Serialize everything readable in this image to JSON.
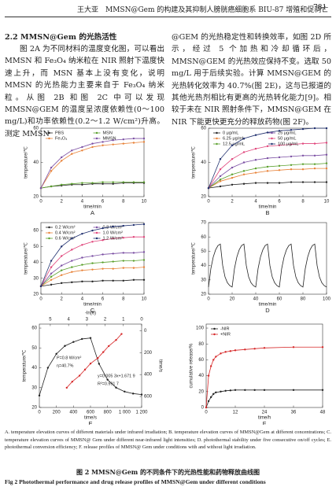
{
  "header": {
    "author": "王大亚",
    "title": "MMSN@Gem 的构建及其抑制人膀胱癌细胞系 BIU-87 增殖和促凋亡",
    "page": "781"
  },
  "body": {
    "heading": "2.2 MMSN@Gem 的光热活性",
    "left": "图 2A 为不同材料的温度变化图，可以看出 MMSN 和 Fe₃O₄ 纳米粒在 NIR 照射下温度快速上升，而 MSN 基本上没有变化，说明 MMSN 的光热能力主要来自于 Fe₃O₄ 纳米粒。从图 2B 和图 2C 中可以发现 MMSN@GEM 的温度呈浓度依赖性(0～100 mg/L)和功率依赖性(0.2～1.2 W/cm²)升高。测定 MMSN",
    "right": "@GEM 的光热稳定性和转换效率，如图 2D 所示，经过 5 个加热和冷却循环后，MMSN@GEM 的光热效应保持不变。选取 50 mg/L 用于后续实验。计算 MMSN@GEM 的光热转化效率为 40.7%(图 2E)，这与已报道的其他光热剂相比有更高的光热转化能力[9]。相较于未在 NIR 照射条件下，MMSN@GEM 在 NIR 下能更快更充分的释放药物(图 2F)。"
  },
  "chart_data": [
    {
      "type": "line",
      "panel_label": "A",
      "xlabel": "time/min",
      "ylabel": "temperature/℃",
      "xlim": [
        0,
        10
      ],
      "ylim": [
        20,
        60
      ],
      "xticks": [
        0,
        2,
        4,
        6,
        8,
        10
      ],
      "yticks": [
        20,
        40,
        60
      ],
      "legend": "upper left",
      "legend_columns": 2,
      "markers": true,
      "x": [
        0,
        1,
        2,
        3,
        4,
        5,
        6,
        7,
        8,
        9,
        10
      ],
      "series": [
        {
          "name": "PBS",
          "color": "#222222",
          "values": [
            25,
            26,
            26.5,
            27,
            27,
            27.5,
            27.5,
            27.5,
            28,
            28,
            28
          ]
        },
        {
          "name": "Fe₃O₄",
          "color": "#e8833a",
          "values": [
            25,
            35,
            41,
            45,
            47,
            49,
            50,
            50.5,
            51,
            51.5,
            52
          ]
        },
        {
          "name": "MSN",
          "color": "#5aa02c",
          "values": [
            25,
            26,
            27,
            27.5,
            28,
            28,
            28.5,
            28.5,
            28.5,
            28.5,
            28.5
          ]
        },
        {
          "name": "MMSN",
          "color": "#7b4fa3",
          "values": [
            25,
            37,
            43,
            47,
            49,
            51,
            52,
            53,
            53.5,
            54,
            54
          ]
        }
      ]
    },
    {
      "type": "line",
      "panel_label": "B",
      "xlabel": "time/min",
      "ylabel": "temperature/℃",
      "xlim": [
        0,
        10
      ],
      "ylim": [
        20,
        60
      ],
      "xticks": [
        0,
        2,
        4,
        6,
        8,
        10
      ],
      "yticks": [
        20,
        40,
        60
      ],
      "legend": "upper left",
      "legend_columns": 2,
      "markers": true,
      "x": [
        0,
        1,
        2,
        3,
        4,
        5,
        6,
        7,
        8,
        9,
        10
      ],
      "series": [
        {
          "name": "0 μg/mL",
          "color": "#222222",
          "values": [
            25,
            26,
            27,
            27.5,
            28,
            28,
            28,
            28.5,
            28.5,
            28.5,
            28.5
          ]
        },
        {
          "name": "6.25 μg/mL",
          "color": "#e8833a",
          "values": [
            25,
            29,
            31,
            33,
            34,
            35,
            35.5,
            36,
            36,
            36.5,
            36.5
          ]
        },
        {
          "name": "12.5 μg/mL",
          "color": "#5aa02c",
          "values": [
            25,
            30,
            33,
            35,
            36.5,
            37.5,
            38,
            38.5,
            39,
            39,
            39.5
          ]
        },
        {
          "name": "25 μg/mL",
          "color": "#7b4fa3",
          "values": [
            25,
            32,
            37,
            40,
            41.5,
            42.5,
            43,
            43.5,
            44,
            44,
            44.5
          ]
        },
        {
          "name": "50 μg/mL",
          "color": "#e0457b",
          "values": [
            25,
            36,
            42,
            46,
            48,
            49.5,
            50,
            50.5,
            51,
            51,
            51.5
          ]
        },
        {
          "name": "100 μg/mL",
          "color": "#1f2f6e",
          "values": [
            25,
            42,
            50,
            54,
            56,
            57.5,
            58.5,
            59,
            59.5,
            60,
            60
          ]
        }
      ]
    },
    {
      "type": "line",
      "panel_label": "C",
      "xlabel": "time/min",
      "ylabel": "temperature/℃",
      "xlim": [
        0,
        10
      ],
      "ylim": [
        20,
        65
      ],
      "xticks": [
        0,
        2,
        4,
        6,
        8,
        10
      ],
      "yticks": [
        20,
        30,
        40,
        50,
        60
      ],
      "legend": "upper left",
      "legend_columns": 2,
      "markers": true,
      "x": [
        0,
        1,
        2,
        3,
        4,
        5,
        6,
        7,
        8,
        9,
        10
      ],
      "series": [
        {
          "name": "0.2 W/cm²",
          "color": "#222222",
          "values": [
            25,
            26,
            27,
            27.5,
            28,
            28,
            28.5,
            28.5,
            28.5,
            29,
            29
          ]
        },
        {
          "name": "0.4 W/cm²",
          "color": "#e8833a",
          "values": [
            25,
            29,
            32,
            34,
            35,
            35.5,
            36,
            36,
            36.5,
            36.5,
            37
          ]
        },
        {
          "name": "0.6 W/cm²",
          "color": "#5aa02c",
          "values": [
            25,
            31,
            35,
            37,
            38.5,
            39.5,
            40,
            40.5,
            41,
            41,
            41.5
          ]
        },
        {
          "name": "0.8 W/cm²",
          "color": "#7b4fa3",
          "values": [
            25,
            33,
            38,
            41,
            43,
            44,
            45,
            45.5,
            46,
            46,
            46.5
          ]
        },
        {
          "name": "1.0 W/cm²",
          "color": "#e0457b",
          "values": [
            25,
            37,
            44,
            48,
            51,
            53,
            54,
            55,
            55.5,
            56,
            56
          ]
        },
        {
          "name": "1.2 W/cm²",
          "color": "#1f2f6e",
          "values": [
            25,
            41,
            50,
            55,
            58,
            60,
            61.5,
            62.5,
            63,
            63.5,
            64
          ]
        }
      ]
    },
    {
      "type": "line",
      "panel_label": "D",
      "xlabel": "time/min",
      "ylabel": "temperature/℃",
      "xlim": [
        0,
        100
      ],
      "ylim": [
        20,
        70
      ],
      "xticks": [
        0,
        20,
        40,
        60,
        80,
        100
      ],
      "yticks": [
        20,
        30,
        40,
        50,
        60,
        70
      ],
      "markers": false,
      "x": [
        0,
        2,
        4,
        6,
        8,
        10,
        12,
        14,
        16,
        18,
        20,
        22,
        24,
        26,
        28,
        30,
        32,
        34,
        36,
        38,
        40,
        42,
        44,
        46,
        48,
        50,
        52,
        54,
        56,
        58,
        60,
        62,
        64,
        66,
        68,
        70,
        72,
        74,
        76,
        78,
        80,
        82,
        84,
        86,
        88,
        90,
        92,
        94,
        96,
        98,
        100
      ],
      "series": [
        {
          "color": "#222222",
          "values": [
            25,
            38,
            46,
            51,
            54,
            55,
            40,
            32,
            28,
            26,
            25,
            38,
            46,
            51,
            54,
            55,
            40,
            32,
            28,
            26,
            25,
            38,
            46,
            51,
            54,
            55,
            40,
            32,
            28,
            26,
            25,
            38,
            46,
            51,
            54,
            55,
            40,
            32,
            28,
            26,
            25,
            38,
            46,
            51,
            54,
            55,
            40,
            32,
            28,
            26,
            25
          ]
        }
      ]
    },
    {
      "type": "line",
      "panel_label": "E",
      "xlabel": "time/s",
      "ylabel": "temperature/℃",
      "x2label": "-ln(θ)",
      "y2label": "time/s",
      "xlim": [
        0,
        1200
      ],
      "ylim": [
        20,
        62
      ],
      "x2lim": [
        5.6,
        0
      ],
      "y2lim": [
        700,
        -60
      ],
      "xticks": [
        0,
        200,
        400,
        600,
        800,
        {
          "value": 1000,
          "label": "1 000"
        },
        {
          "value": 1200,
          "label": "1 200"
        }
      ],
      "yticks": [
        20,
        30,
        40,
        50,
        60
      ],
      "x2ticks": [
        5,
        4,
        3,
        2,
        1,
        0
      ],
      "y2ticks": [
        0,
        200,
        400,
        600
      ],
      "markers": true,
      "annotations": [
        "P=0.8 W/cm²",
        "η=40.7%",
        "y=0.005 3x+1.671 9",
        "R²=0.991 7"
      ],
      "series": [
        {
          "color": "#222222",
          "x": [
            0,
            100,
            200,
            300,
            400,
            500,
            600,
            700,
            800,
            900,
            1000,
            1100,
            1200
          ],
          "values": [
            26,
            40,
            47,
            51,
            53,
            54.5,
            55,
            42,
            34,
            30,
            28,
            27,
            26.5
          ]
        },
        {
          "color": "#d62728",
          "axis": "y2",
          "xaxis": "x2",
          "x": [
            4.1,
            3.8,
            3.4,
            3.1,
            2.8,
            2.4,
            2.1,
            1.8,
            1.4,
            1.1
          ],
          "values": [
            520,
            465,
            410,
            355,
            300,
            250,
            195,
            140,
            85,
            30
          ]
        }
      ]
    },
    {
      "type": "line",
      "panel_label": "F",
      "xlabel": "time/h",
      "ylabel": "cumulative release/%",
      "xlim": [
        0,
        48
      ],
      "ylim": [
        0,
        105
      ],
      "xticks": [
        0,
        12,
        24,
        36,
        48
      ],
      "yticks": [
        0,
        20,
        40,
        60,
        80,
        100
      ],
      "legend": "upper left",
      "legend_columns": 1,
      "markers": true,
      "x": [
        0,
        1,
        2,
        3,
        4,
        6,
        8,
        10,
        12,
        16,
        20,
        24,
        36,
        48
      ],
      "series": [
        {
          "name": "-NIR",
          "color": "#222222",
          "values": [
            0,
            8,
            13,
            17,
            19,
            20,
            21,
            21.5,
            22,
            22,
            22,
            22,
            22,
            22
          ]
        },
        {
          "name": "+NIR",
          "color": "#d62728",
          "values": [
            0,
            40,
            52,
            60,
            64,
            68,
            70,
            71,
            72,
            73,
            74,
            75,
            76,
            76
          ]
        }
      ]
    }
  ],
  "caption": {
    "notes": "A. temperature elevation curves of different materials under infrared irradiation; B. temperature elevation curves of MMSN@Gem at different concentrations; C. temperature elevation curves of MMSN@ Gem under different near-infrared light intensities; D. photothermal stability under five consecutive on/off cycles; E. photothermal conversion efficiency; F. release profiles of MMSN@ Gem under conditions with and without light irradiation.",
    "title_cn": "图 2 MMSN@Gem 的不同条件下的光热性能和药物释放曲线图",
    "title_en": "Fig 2 Photothermal performance and drug release profiles of MMSN@Gem under different conditions"
  }
}
